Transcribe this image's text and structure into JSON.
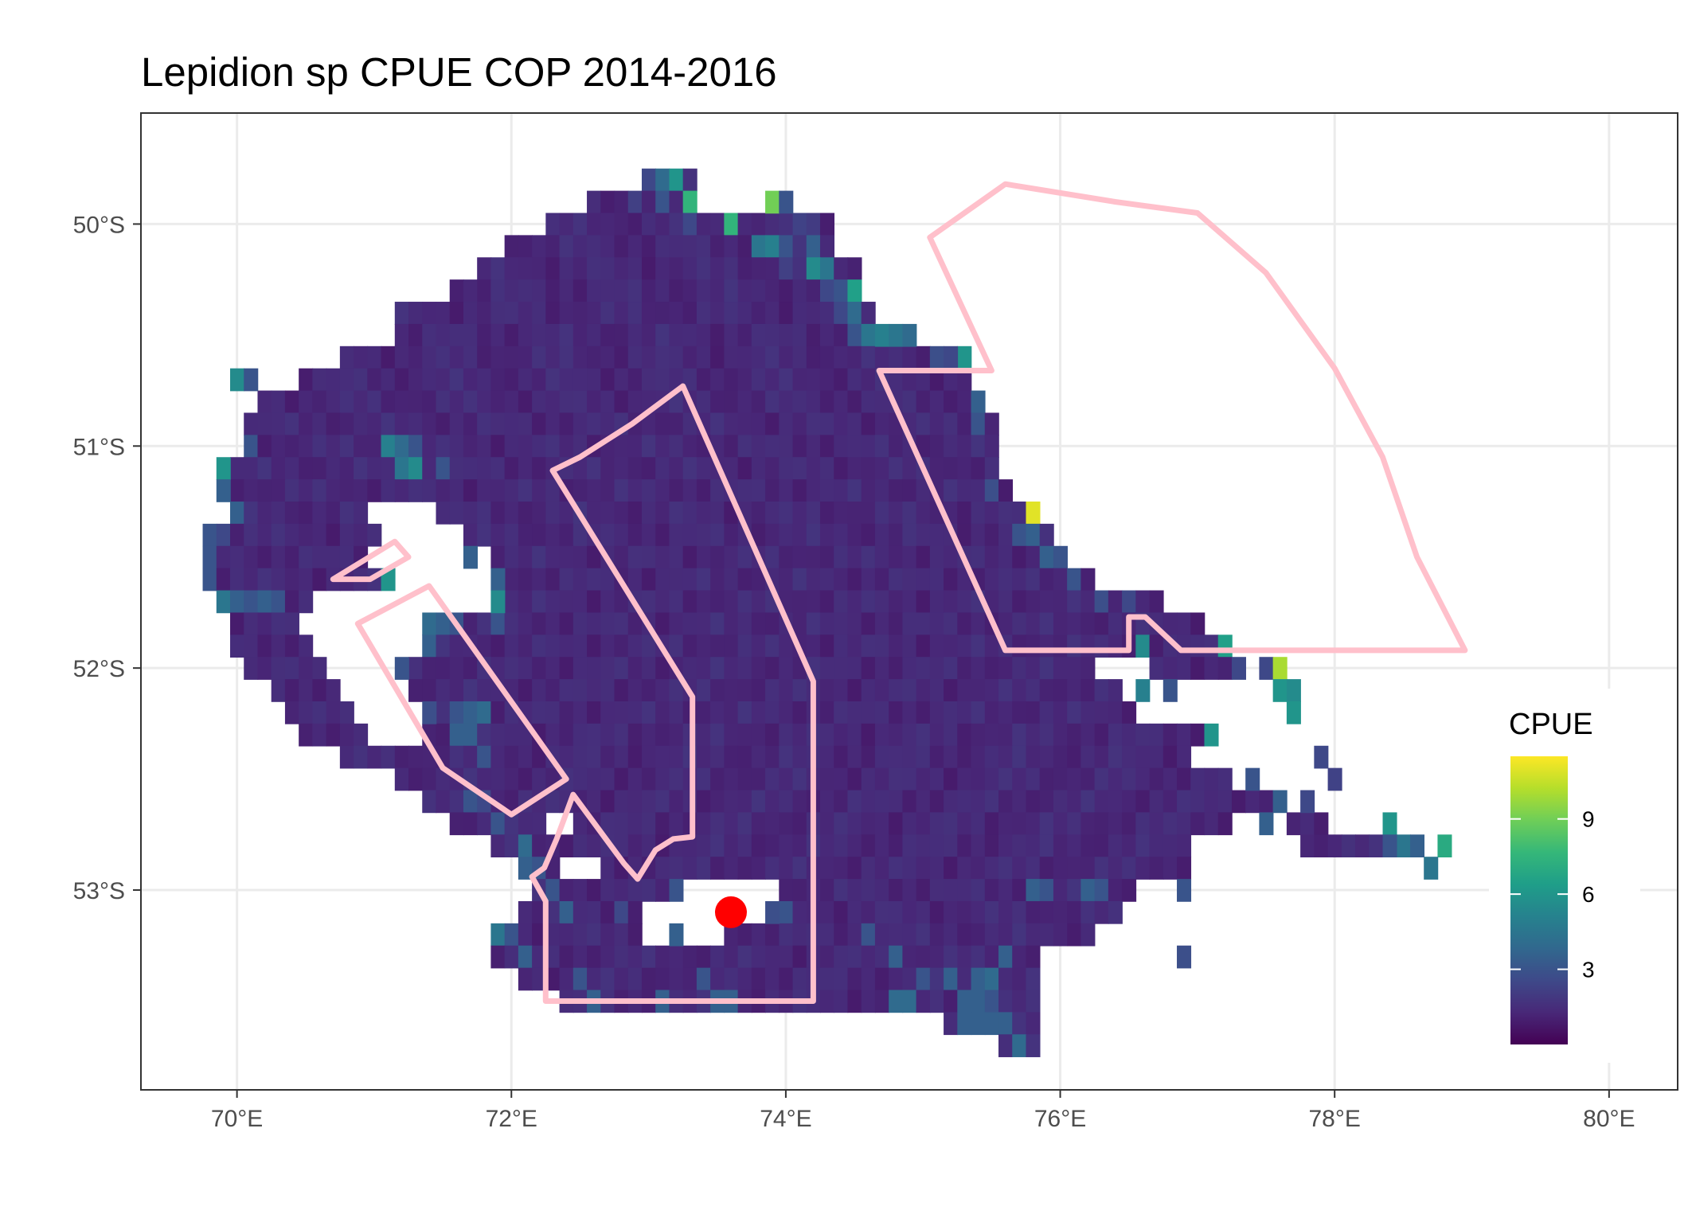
{
  "chart_data": {
    "type": "heatmap",
    "title": "Lepidion sp  CPUE COP 2014-2016",
    "xlabel": "",
    "ylabel": "",
    "xlim": [
      69.3,
      80.5
    ],
    "ylim": [
      -53.9,
      -49.5
    ],
    "x_ticks": [
      70,
      72,
      74,
      76,
      78,
      80
    ],
    "x_tick_labels": [
      "70°E",
      "72°E",
      "74°E",
      "76°E",
      "78°E",
      "80°E"
    ],
    "y_ticks": [
      -50,
      -51,
      -52,
      -53
    ],
    "y_tick_labels": [
      "50°S",
      "51°S",
      "52°S",
      "53°S"
    ],
    "grid": true,
    "cell_size": [
      0.1,
      0.1
    ],
    "background_cpue": 1.3,
    "range_rows": [
      [
        -49.8,
        73.0,
        73.3
      ],
      [
        -49.9,
        72.6,
        73.3
      ],
      [
        -50.0,
        72.3,
        74.3
      ],
      [
        -50.1,
        72.0,
        74.3
      ],
      [
        -50.2,
        71.8,
        74.5
      ],
      [
        -50.3,
        71.6,
        74.5
      ],
      [
        -50.4,
        71.2,
        74.6
      ],
      [
        -50.5,
        71.2,
        74.6
      ],
      [
        -50.6,
        70.8,
        75.0
      ],
      [
        -50.7,
        70.5,
        75.3
      ],
      [
        -50.8,
        70.2,
        75.4
      ],
      [
        -50.9,
        70.1,
        75.5
      ],
      [
        -51.0,
        70.1,
        75.5
      ],
      [
        -51.1,
        70.0,
        75.5
      ],
      [
        -51.2,
        70.0,
        75.6
      ],
      [
        -51.3,
        70.0,
        75.8
      ],
      [
        -51.4,
        69.8,
        75.9
      ],
      [
        -51.5,
        69.8,
        76.0
      ],
      [
        -51.6,
        69.8,
        76.2
      ],
      [
        -51.7,
        69.9,
        76.7
      ],
      [
        -51.8,
        70.0,
        77.0
      ],
      [
        -51.9,
        70.0,
        77.2
      ],
      [
        -52.0,
        70.1,
        77.3
      ],
      [
        -52.1,
        70.3,
        76.7
      ],
      [
        -52.2,
        70.4,
        77.0
      ],
      [
        -52.3,
        70.5,
        77.1
      ],
      [
        -52.4,
        70.8,
        77.2
      ],
      [
        -52.5,
        71.2,
        77.4
      ],
      [
        -52.6,
        71.4,
        77.6
      ],
      [
        -52.7,
        71.6,
        77.9
      ],
      [
        -52.8,
        71.9,
        78.3
      ],
      [
        -52.9,
        72.1,
        77.0
      ],
      [
        -53.0,
        72.2,
        76.5
      ],
      [
        -53.1,
        72.1,
        76.4
      ],
      [
        -53.2,
        71.9,
        76.2
      ],
      [
        -53.3,
        71.9,
        75.8
      ],
      [
        -53.4,
        72.1,
        75.8
      ],
      [
        -53.5,
        72.4,
        75.8
      ],
      [
        -53.6,
        75.2,
        75.8
      ],
      [
        -53.7,
        75.6,
        75.8
      ]
    ],
    "holes": [
      [
        -51.3,
        71.0,
        71.4
      ],
      [
        -51.4,
        71.1,
        71.6
      ],
      [
        -51.5,
        71.0,
        71.8
      ],
      [
        -51.6,
        71.1,
        71.9
      ],
      [
        -51.7,
        70.6,
        71.9
      ],
      [
        -51.8,
        70.5,
        71.3
      ],
      [
        -51.9,
        70.6,
        71.3
      ],
      [
        -52.0,
        70.7,
        71.2
      ],
      [
        -52.1,
        70.8,
        71.2
      ],
      [
        -52.2,
        70.9,
        71.4
      ],
      [
        -52.3,
        71.0,
        71.3
      ],
      [
        -52.7,
        72.3,
        72.4
      ],
      [
        -52.9,
        72.4,
        72.6
      ],
      [
        -53.0,
        73.3,
        73.9
      ],
      [
        -53.1,
        73.0,
        73.9
      ],
      [
        -53.2,
        73.0,
        73.5
      ],
      [
        -52.0,
        76.3,
        76.6
      ],
      [
        -52.1,
        76.5,
        76.9
      ],
      [
        -52.2,
        76.6,
        77.0
      ],
      [
        -52.4,
        77.0,
        77.2
      ],
      [
        -52.5,
        77.3,
        77.4
      ],
      [
        -52.7,
        77.3,
        77.6
      ],
      [
        -52.8,
        77.0,
        77.7
      ],
      [
        -52.9,
        77.0,
        77.2
      ],
      [
        -53.0,
        77.0,
        77.1
      ],
      [
        -53.2,
        76.6,
        77.0
      ]
    ],
    "cells": [
      [
        73.0,
        -49.8,
        2.5
      ],
      [
        73.1,
        -49.8,
        4.0
      ],
      [
        73.2,
        -49.8,
        6.0
      ],
      [
        72.9,
        -49.9,
        2.2
      ],
      [
        73.1,
        -49.9,
        3.0
      ],
      [
        73.3,
        -49.9,
        7.5
      ],
      [
        73.9,
        -49.9,
        9.0
      ],
      [
        74.0,
        -49.9,
        3.0
      ],
      [
        73.6,
        -50.0,
        7.5
      ],
      [
        73.3,
        -50.0,
        2.5
      ],
      [
        74.1,
        -50.0,
        2.3
      ],
      [
        74.2,
        -50.0,
        2.0
      ],
      [
        73.8,
        -50.1,
        4.5
      ],
      [
        73.9,
        -50.1,
        5.0
      ],
      [
        74.0,
        -50.1,
        3.0
      ],
      [
        74.2,
        -50.1,
        3.5
      ],
      [
        74.2,
        -50.2,
        5.5
      ],
      [
        74.3,
        -50.2,
        4.5
      ],
      [
        74.0,
        -50.2,
        2.2
      ],
      [
        74.4,
        -50.3,
        3.0
      ],
      [
        74.5,
        -50.3,
        6.5
      ],
      [
        74.3,
        -50.3,
        2.5
      ],
      [
        74.5,
        -50.4,
        4.0
      ],
      [
        74.4,
        -50.4,
        2.5
      ],
      [
        74.6,
        -50.5,
        4.5
      ],
      [
        74.7,
        -50.5,
        5.0
      ],
      [
        74.8,
        -50.5,
        4.5
      ],
      [
        74.9,
        -50.5,
        4.0
      ],
      [
        74.5,
        -50.5,
        3.0
      ],
      [
        75.3,
        -50.6,
        6.0
      ],
      [
        75.1,
        -50.6,
        2.8
      ],
      [
        75.2,
        -50.6,
        2.5
      ],
      [
        70.0,
        -50.7,
        5.5
      ],
      [
        70.1,
        -50.7,
        3.0
      ],
      [
        75.4,
        -50.8,
        3.5
      ],
      [
        75.4,
        -50.9,
        3.0
      ],
      [
        70.1,
        -51.0,
        3.0
      ],
      [
        71.1,
        -51.0,
        5.0
      ],
      [
        71.2,
        -51.0,
        4.0
      ],
      [
        71.3,
        -51.0,
        3.0
      ],
      [
        69.9,
        -51.1,
        6.0
      ],
      [
        71.2,
        -51.1,
        4.5
      ],
      [
        71.3,
        -51.1,
        5.5
      ],
      [
        71.5,
        -51.1,
        3.0
      ],
      [
        69.9,
        -51.2,
        3.5
      ],
      [
        75.5,
        -51.2,
        2.8
      ],
      [
        70.0,
        -51.3,
        3.5
      ],
      [
        75.8,
        -51.3,
        11.0
      ],
      [
        69.8,
        -51.4,
        3.0
      ],
      [
        69.9,
        -51.4,
        2.5
      ],
      [
        75.7,
        -51.4,
        3.0
      ],
      [
        75.8,
        -51.4,
        3.5
      ],
      [
        69.8,
        -51.5,
        3.0
      ],
      [
        71.7,
        -51.5,
        3.5
      ],
      [
        75.9,
        -51.5,
        3.5
      ],
      [
        76.0,
        -51.5,
        3.0
      ],
      [
        69.8,
        -51.6,
        3.0
      ],
      [
        71.1,
        -51.6,
        6.0
      ],
      [
        71.9,
        -51.6,
        3.5
      ],
      [
        76.1,
        -51.6,
        3.0
      ],
      [
        69.9,
        -51.7,
        4.5
      ],
      [
        70.0,
        -51.7,
        3.5
      ],
      [
        70.1,
        -51.7,
        3.0
      ],
      [
        70.2,
        -51.7,
        3.5
      ],
      [
        70.3,
        -51.7,
        3.0
      ],
      [
        71.9,
        -51.7,
        5.5
      ],
      [
        76.3,
        -51.7,
        2.8
      ],
      [
        76.5,
        -51.7,
        2.5
      ],
      [
        71.4,
        -51.8,
        4.0
      ],
      [
        71.5,
        -51.8,
        3.5
      ],
      [
        71.6,
        -51.8,
        3.0
      ],
      [
        71.9,
        -51.8,
        3.0
      ],
      [
        71.4,
        -51.9,
        3.5
      ],
      [
        76.6,
        -51.9,
        5.5
      ],
      [
        77.2,
        -51.9,
        6.5
      ],
      [
        71.2,
        -52.0,
        3.0
      ],
      [
        77.3,
        -52.0,
        2.5
      ],
      [
        77.5,
        -52.0,
        2.5
      ],
      [
        77.6,
        -52.0,
        10.0
      ],
      [
        76.6,
        -52.1,
        5.0
      ],
      [
        76.8,
        -52.1,
        3.0
      ],
      [
        77.6,
        -52.1,
        6.0
      ],
      [
        77.7,
        -52.1,
        5.5
      ],
      [
        71.4,
        -52.2,
        2.8
      ],
      [
        71.6,
        -52.2,
        3.0
      ],
      [
        71.7,
        -52.2,
        3.5
      ],
      [
        71.8,
        -52.2,
        4.0
      ],
      [
        77.7,
        -52.2,
        6.0
      ],
      [
        71.6,
        -52.3,
        3.5
      ],
      [
        71.7,
        -52.3,
        3.5
      ],
      [
        77.1,
        -52.3,
        6.0
      ],
      [
        71.8,
        -52.4,
        3.0
      ],
      [
        77.9,
        -52.4,
        2.5
      ],
      [
        77.4,
        -52.5,
        3.0
      ],
      [
        78.0,
        -52.5,
        2.3
      ],
      [
        71.7,
        -52.6,
        3.0
      ],
      [
        71.8,
        -52.6,
        2.5
      ],
      [
        77.6,
        -52.6,
        3.5
      ],
      [
        77.8,
        -52.6,
        2.5
      ],
      [
        71.9,
        -52.7,
        3.0
      ],
      [
        77.5,
        -52.7,
        3.5
      ],
      [
        78.4,
        -52.7,
        6.0
      ],
      [
        72.1,
        -52.8,
        4.0
      ],
      [
        78.5,
        -52.8,
        4.5
      ],
      [
        78.6,
        -52.8,
        3.5
      ],
      [
        78.8,
        -52.8,
        7.0
      ],
      [
        78.4,
        -52.8,
        3.0
      ],
      [
        72.2,
        -52.9,
        3.0
      ],
      [
        72.1,
        -52.9,
        3.5
      ],
      [
        78.7,
        -52.9,
        4.5
      ],
      [
        72.3,
        -53.0,
        3.0
      ],
      [
        73.2,
        -53.0,
        3.0
      ],
      [
        75.8,
        -53.0,
        3.5
      ],
      [
        75.9,
        -53.0,
        3.0
      ],
      [
        76.2,
        -53.0,
        3.5
      ],
      [
        76.3,
        -53.0,
        3.0
      ],
      [
        76.9,
        -53.0,
        3.0
      ],
      [
        72.4,
        -53.1,
        3.5
      ],
      [
        72.8,
        -53.1,
        2.5
      ],
      [
        73.9,
        -53.1,
        2.8
      ],
      [
        74.0,
        -53.1,
        3.0
      ],
      [
        71.9,
        -53.2,
        4.5
      ],
      [
        72.0,
        -53.2,
        3.0
      ],
      [
        73.2,
        -53.2,
        3.5
      ],
      [
        74.6,
        -53.2,
        3.0
      ],
      [
        72.1,
        -53.3,
        3.5
      ],
      [
        74.8,
        -53.3,
        3.5
      ],
      [
        75.6,
        -53.3,
        3.5
      ],
      [
        76.9,
        -53.3,
        2.8
      ],
      [
        72.5,
        -53.4,
        3.0
      ],
      [
        73.4,
        -53.4,
        3.0
      ],
      [
        75.0,
        -53.4,
        3.0
      ],
      [
        75.2,
        -53.4,
        3.5
      ],
      [
        75.4,
        -53.4,
        3.5
      ],
      [
        75.5,
        -53.4,
        4.0
      ],
      [
        72.6,
        -53.5,
        3.5
      ],
      [
        73.1,
        -53.5,
        3.5
      ],
      [
        73.5,
        -53.5,
        3.5
      ],
      [
        73.6,
        -53.5,
        3.5
      ],
      [
        74.8,
        -53.5,
        4.0
      ],
      [
        74.9,
        -53.5,
        4.0
      ],
      [
        75.3,
        -53.5,
        3.5
      ],
      [
        75.4,
        -53.5,
        3.5
      ],
      [
        75.5,
        -53.5,
        3.0
      ],
      [
        75.3,
        -53.6,
        3.5
      ],
      [
        75.4,
        -53.6,
        3.5
      ],
      [
        75.5,
        -53.6,
        3.5
      ],
      [
        75.6,
        -53.6,
        3.5
      ],
      [
        75.7,
        -53.7,
        4.0
      ]
    ],
    "boundaries": [
      [
        [
          75.6,
          -49.82
        ],
        [
          75.05,
          -50.06
        ],
        [
          75.5,
          -50.66
        ],
        [
          74.68,
          -50.66
        ],
        [
          75.6,
          -51.92
        ],
        [
          76.5,
          -51.92
        ],
        [
          76.5,
          -51.77
        ],
        [
          76.62,
          -51.77
        ],
        [
          76.88,
          -51.92
        ],
        [
          78.95,
          -51.92
        ],
        [
          78.6,
          -51.5
        ],
        [
          78.35,
          -51.05
        ],
        [
          78.0,
          -50.65
        ],
        [
          77.5,
          -50.22
        ],
        [
          77.0,
          -49.95
        ],
        [
          76.4,
          -49.9
        ],
        [
          75.6,
          -49.82
        ]
      ],
      [
        [
          73.25,
          -50.73
        ],
        [
          72.88,
          -50.9
        ],
        [
          72.5,
          -51.05
        ],
        [
          72.3,
          -51.11
        ],
        [
          73.32,
          -52.13
        ],
        [
          73.32,
          -52.76
        ],
        [
          73.18,
          -52.77
        ],
        [
          73.05,
          -52.82
        ],
        [
          72.92,
          -52.95
        ],
        [
          72.82,
          -52.88
        ],
        [
          72.45,
          -52.57
        ],
        [
          72.33,
          -52.77
        ],
        [
          72.24,
          -52.9
        ],
        [
          72.15,
          -52.94
        ],
        [
          72.25,
          -53.05
        ],
        [
          72.25,
          -53.5
        ],
        [
          74.2,
          -53.5
        ],
        [
          74.2,
          -52.06
        ],
        [
          73.25,
          -50.73
        ]
      ],
      [
        [
          71.15,
          -51.43
        ],
        [
          70.7,
          -51.6
        ],
        [
          70.97,
          -51.6
        ],
        [
          71.25,
          -51.5
        ],
        [
          71.15,
          -51.43
        ]
      ],
      [
        [
          71.4,
          -51.63
        ],
        [
          70.88,
          -51.8
        ],
        [
          71.5,
          -52.45
        ],
        [
          72.0,
          -52.66
        ],
        [
          72.4,
          -52.5
        ],
        [
          71.4,
          -51.63
        ]
      ]
    ],
    "points": [
      {
        "x": 73.6,
        "y": -53.1,
        "color": "#ff0000"
      }
    ],
    "legend": {
      "title": "CPUE",
      "placement": "right",
      "ticks": [
        3,
        6,
        9
      ],
      "tick_labels": [
        "3",
        "6",
        "9"
      ],
      "range": [
        0,
        11.5
      ]
    },
    "colors": {
      "boundary": "#ffc0cb",
      "point": "#ff0000",
      "grid": "#ebebeb",
      "panel_border": "#333333",
      "viridis": [
        "#440154",
        "#482878",
        "#3e4989",
        "#31688e",
        "#26828e",
        "#1f9e89",
        "#35b779",
        "#6ece58",
        "#b5de2b",
        "#fde725"
      ]
    }
  }
}
